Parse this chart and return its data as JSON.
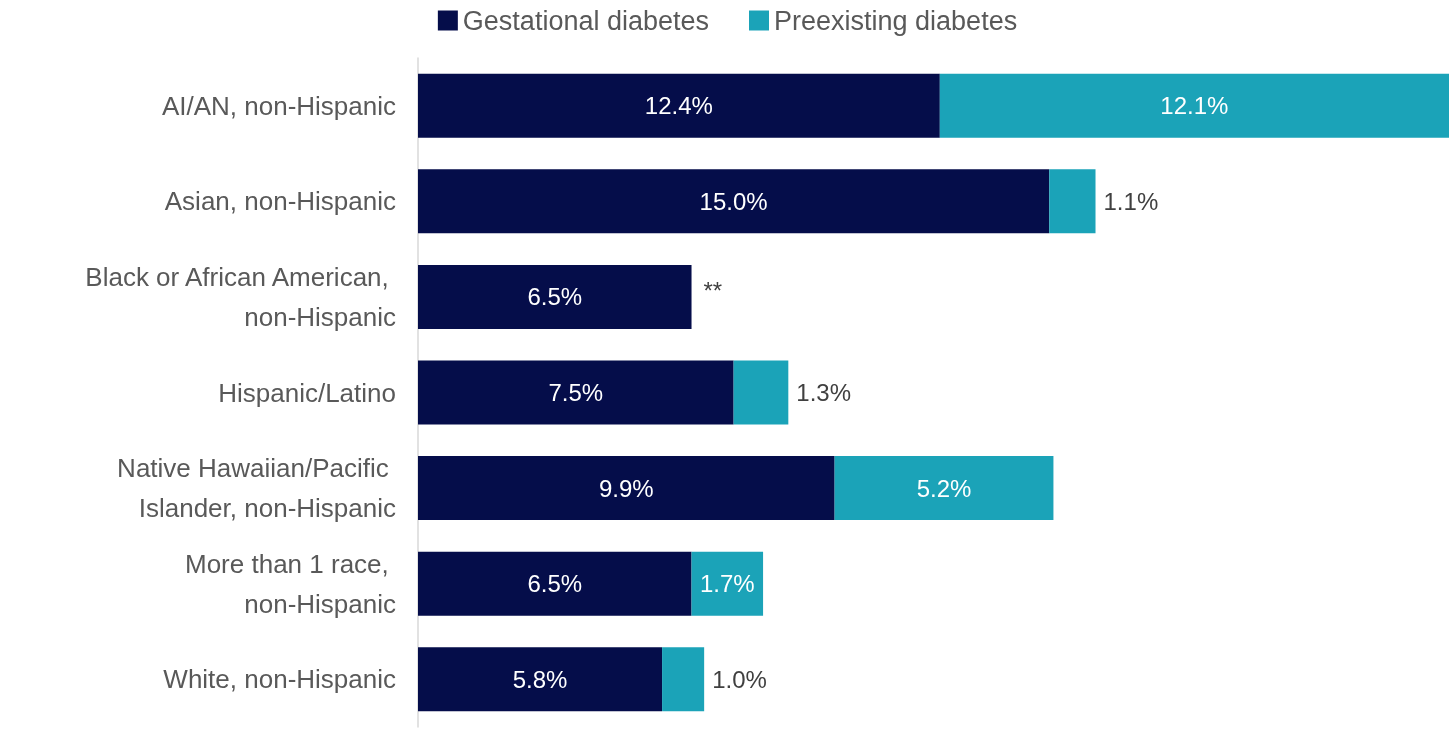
{
  "chart_data": {
    "type": "bar",
    "orientation": "horizontal",
    "stacked": true,
    "data_labels": true,
    "legend": "top",
    "categories": [
      "AI/AN, non-Hispanic",
      "Asian, non-Hispanic",
      "Black or African American, non-Hispanic",
      "Hispanic/Latino",
      "Native Hawaiian/Pacific Islander, non-Hispanic",
      "More than 1 race, non-Hispanic",
      "White, non-Hispanic"
    ],
    "series": [
      {
        "name": "Gestational diabetes",
        "color": "#050d4a",
        "values": [
          12.4,
          15.0,
          6.5,
          7.5,
          9.9,
          6.5,
          5.8
        ],
        "value_labels": [
          "12.4%",
          "15.0%",
          "6.5%",
          "7.5%",
          "9.9%",
          "6.5%",
          "5.8%"
        ]
      },
      {
        "name": "Preexisting diabetes",
        "color": "#1ba3b8",
        "values": [
          12.1,
          1.1,
          null,
          1.3,
          5.2,
          1.7,
          1.0
        ],
        "value_labels": [
          "12.1%",
          "1.1%",
          "**",
          "1.3%",
          "5.2%",
          "1.7%",
          "1.0%"
        ]
      }
    ]
  }
}
